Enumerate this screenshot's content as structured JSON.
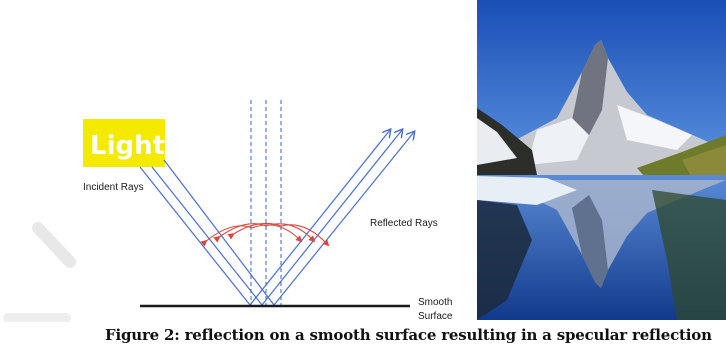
{
  "diagram": {
    "light_label": "Light",
    "incident_label": "Incident Rays",
    "reflected_label": "Reflected Rays",
    "surface_label_line1": "Smooth",
    "surface_label_line2": "Surface",
    "colors": {
      "ray": "#4a6fd0",
      "normal": "#4a6fd0",
      "arc": "#d9473e",
      "light_box": "#f3ea00",
      "surface": "#1a1a1a"
    }
  },
  "photo": {
    "description_icon": "matterhorn-reflection-photo"
  },
  "caption": "Figure 2: reflection on a smooth surface resulting in a specular reflection"
}
